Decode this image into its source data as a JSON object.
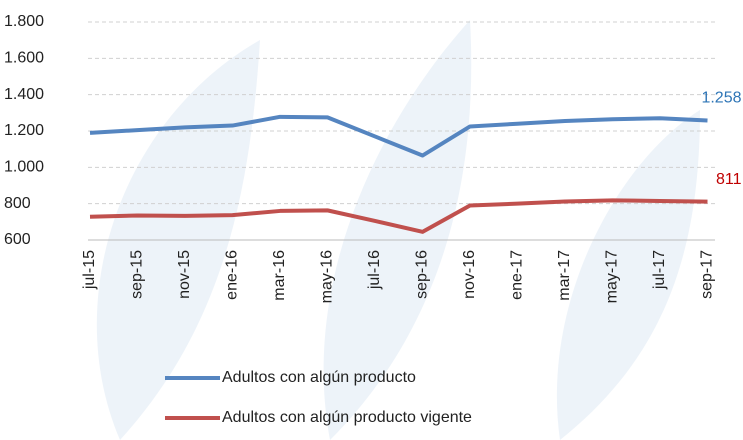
{
  "chart_data": {
    "type": "line",
    "categories": [
      "jul-15",
      "sep-15",
      "nov-15",
      "ene-16",
      "mar-16",
      "may-16",
      "jul-16",
      "sep-16",
      "nov-16",
      "ene-17",
      "mar-17",
      "may-17",
      "jul-17",
      "sep-17"
    ],
    "series": [
      {
        "name": "Adultos con algún producto",
        "color": "#5585c0",
        "label_color": "#2e75b6",
        "values": [
          1190,
          1205,
          1220,
          1230,
          1278,
          1275,
          1170,
          1065,
          1225,
          1240,
          1255,
          1265,
          1270,
          1258
        ],
        "value_labels": [
          null,
          null,
          null,
          null,
          null,
          null,
          null,
          null,
          null,
          null,
          null,
          null,
          null,
          "1.258"
        ]
      },
      {
        "name": "Adultos con algún producto vigente",
        "color": "#c0504d",
        "label_color": "#c00000",
        "values": [
          728,
          735,
          733,
          737,
          760,
          763,
          705,
          645,
          790,
          800,
          812,
          818,
          815,
          811
        ],
        "value_labels": [
          null,
          null,
          null,
          null,
          null,
          null,
          null,
          null,
          null,
          null,
          null,
          null,
          null,
          "811"
        ]
      }
    ],
    "ylim": [
      600,
      1800
    ],
    "yticks": [
      600,
      800,
      {
        "value": 1000,
        "label": "1.000"
      },
      {
        "value": 1200,
        "label": "1.200"
      },
      {
        "value": 1400,
        "label": "1.400"
      },
      {
        "value": 1600,
        "label": "1.600"
      },
      {
        "value": 1800,
        "label": "1.800"
      }
    ],
    "grid": true
  }
}
